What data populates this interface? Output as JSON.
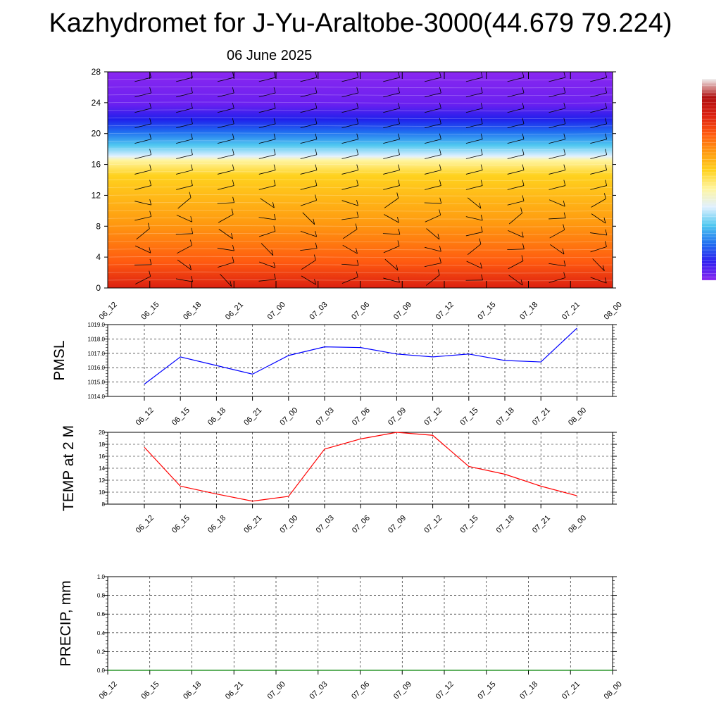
{
  "title": "Kazhydromet for J-Yu-Araltobe-3000(44.679 79.224)",
  "subtitle": "06 June 2025",
  "colors": {
    "pmsl_line": "#0000ff",
    "temp_line": "#ff0000",
    "precip_line": "#008000",
    "grid": "#000000"
  },
  "chart_data": [
    {
      "type": "heatmap",
      "title": "",
      "xlabel": "",
      "ylabel": "",
      "ylim": [
        0,
        28
      ],
      "yticks": [
        0,
        4,
        8,
        12,
        16,
        20,
        24,
        28
      ],
      "x_ticks": [
        "06_12",
        "06_15",
        "06_18",
        "06_21",
        "07_00",
        "07_03",
        "07_06",
        "07_09",
        "07_12",
        "07_15",
        "07_18",
        "07_21",
        "08_00"
      ],
      "color_gradient": [
        "#dc2010",
        "#ff5a10",
        "#ff9a10",
        "#ffd21e",
        "#fff5a0",
        "#e0f0ff",
        "#50c8f0",
        "#2070f0",
        "#2020ec",
        "#6a20f0",
        "#8a28f0"
      ],
      "colorbar_colors": [
        "#8a28f0",
        "#3020f0",
        "#2070f0",
        "#50c8f0",
        "#e0f0ff",
        "#fff5a0",
        "#ffd21e",
        "#ff9a10",
        "#ff5a10",
        "#dc2010",
        "#b01010",
        "#f0f0f0"
      ],
      "wind_barbs": true,
      "legend": "right"
    },
    {
      "type": "line",
      "ylabel": "PMSL",
      "ylim": [
        1014.0,
        1019.0
      ],
      "yticks": [
        "1014.0",
        "1015.0",
        "1016.0",
        "1017.0",
        "1018.0",
        "1019.0"
      ],
      "x_ticks": [
        "06_12",
        "06_15",
        "06_18",
        "06_21",
        "07_00",
        "07_03",
        "07_06",
        "07_09",
        "07_12",
        "07_15",
        "07_18",
        "07_21",
        "08_00"
      ],
      "series": [
        {
          "values": [
            1014.85,
            1016.75,
            1016.15,
            1015.55,
            1016.85,
            1017.45,
            1017.4,
            1016.95,
            1016.75,
            1016.95,
            1016.5,
            1016.4,
            1018.75
          ],
          "color": "#0000ff"
        }
      ],
      "grid": true
    },
    {
      "type": "line",
      "ylabel": "TEMP at 2 M",
      "ylim": [
        8,
        20
      ],
      "yticks": [
        "8",
        "10",
        "12",
        "14",
        "16",
        "18",
        "20"
      ],
      "x_ticks": [
        "06_12",
        "06_15",
        "06_18",
        "06_21",
        "07_00",
        "07_03",
        "07_06",
        "07_09",
        "07_12",
        "07_15",
        "07_18",
        "07_21",
        "08_00"
      ],
      "series": [
        {
          "values": [
            17.5,
            11.0,
            9.7,
            8.5,
            9.3,
            17.2,
            18.9,
            20.0,
            19.5,
            14.3,
            13.0,
            11.0,
            9.4
          ],
          "color": "#ff0000"
        }
      ],
      "grid": true
    },
    {
      "type": "line",
      "ylabel": "PRECIP, mm",
      "ylim": [
        0.0,
        1.0
      ],
      "yticks": [
        "0.0",
        "0.2",
        "0.4",
        "0.6",
        "0.8",
        "1.0"
      ],
      "x_ticks": [
        "06_12",
        "06_15",
        "06_18",
        "06_21",
        "07_00",
        "07_03",
        "07_06",
        "07_09",
        "07_12",
        "07_15",
        "07_18",
        "07_21",
        "08_00"
      ],
      "series": [
        {
          "values": [
            0,
            0,
            0,
            0,
            0,
            0,
            0,
            0,
            0,
            0,
            0,
            0,
            0
          ],
          "color": "#008000"
        }
      ],
      "grid": true
    }
  ]
}
